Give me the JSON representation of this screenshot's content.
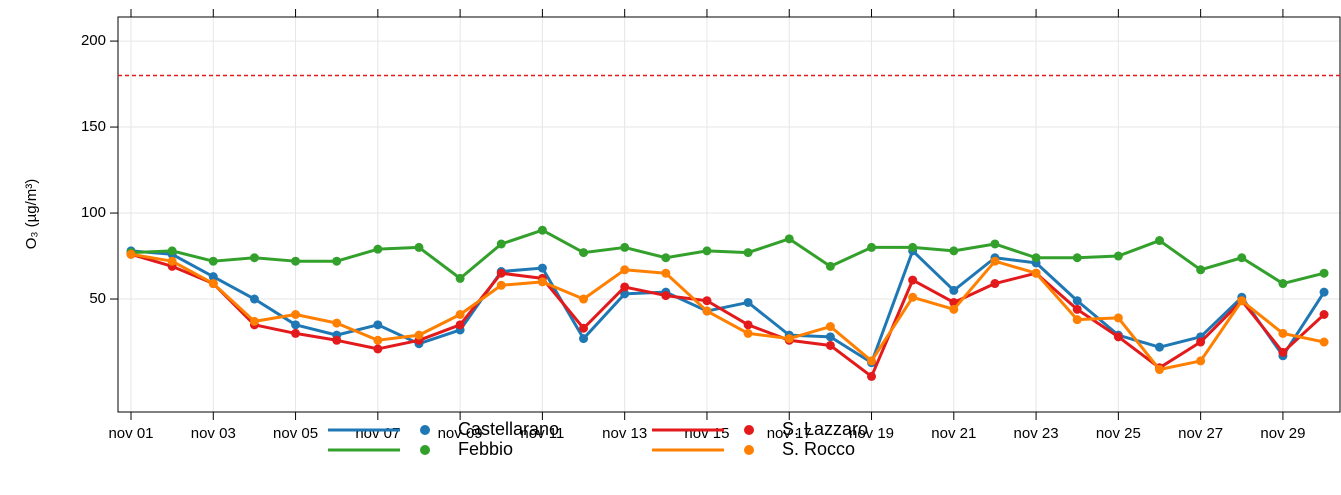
{
  "chart_data": {
    "type": "line",
    "y_label": "O₃ (µg/m³)",
    "categories": [
      "nov 01",
      null,
      "nov 03",
      null,
      "nov 05",
      null,
      "nov 07",
      null,
      "nov 09",
      null,
      "nov 11",
      null,
      "nov 13",
      null,
      "nov 15",
      null,
      "nov 17",
      null,
      "nov 19",
      null,
      "nov 21",
      null,
      "nov 23",
      null,
      "nov 25",
      null,
      "nov 27",
      null,
      "nov 29",
      null
    ],
    "series": [
      {
        "name": "Castellarano",
        "color": "#1f78b4",
        "values": [
          78,
          76,
          63,
          50,
          35,
          29,
          35,
          24,
          32,
          66,
          68,
          27,
          53,
          54,
          43,
          48,
          29,
          28,
          13,
          78,
          55,
          74,
          71,
          49,
          29,
          22,
          28,
          51,
          17,
          54
        ]
      },
      {
        "name": "Febbio",
        "color": "#33a02c",
        "values": [
          77,
          78,
          72,
          74,
          72,
          72,
          79,
          80,
          62,
          82,
          90,
          77,
          80,
          74,
          78,
          77,
          85,
          69,
          80,
          80,
          78,
          82,
          74,
          74,
          75,
          84,
          67,
          74,
          59,
          65
        ]
      },
      {
        "name": "S. Lazzaro",
        "color": "#e31a1c",
        "values": [
          76,
          69,
          59,
          35,
          30,
          26,
          21,
          26,
          35,
          65,
          62,
          33,
          57,
          52,
          49,
          35,
          26,
          23,
          5,
          61,
          48,
          59,
          65,
          44,
          28,
          10,
          25,
          49,
          19,
          41
        ]
      },
      {
        "name": "S. Rocco",
        "color": "#ff7f00",
        "values": [
          76,
          72,
          59,
          37,
          41,
          36,
          26,
          29,
          41,
          58,
          60,
          50,
          67,
          65,
          43,
          30,
          27,
          34,
          14,
          51,
          44,
          72,
          65,
          38,
          39,
          9,
          14,
          49,
          30,
          25
        ]
      }
    ],
    "ylim": [
      -15.7,
      214
    ],
    "yticks": [
      50,
      100,
      150,
      200
    ],
    "grid": true,
    "hline": {
      "value": 180,
      "color": "#e41a1c"
    }
  }
}
